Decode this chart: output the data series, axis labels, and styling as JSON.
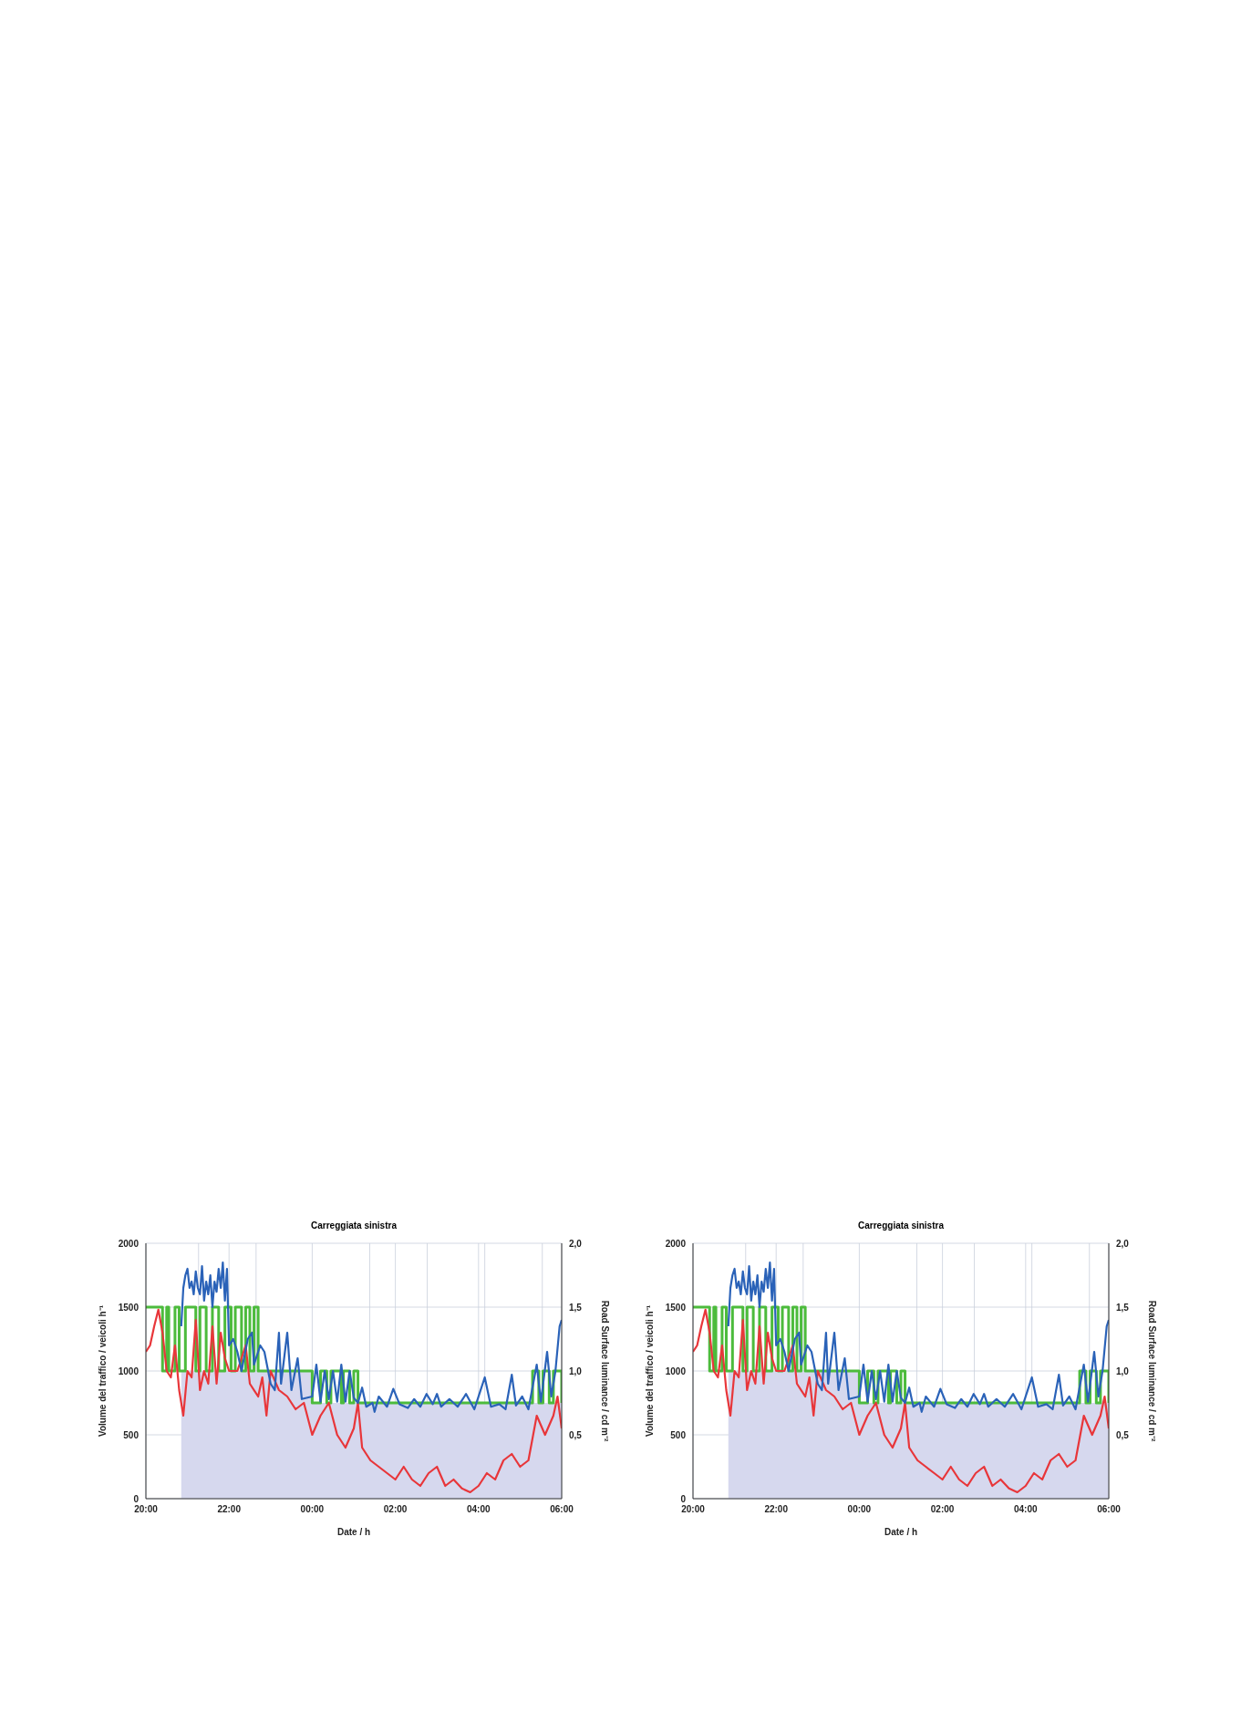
{
  "chart_data": [
    {
      "type": "line",
      "title": "Carreggiata sinistra",
      "xlabel": "Date / h",
      "ylabel": "Volume del traffico / veicoli h⁻¹",
      "y2label": "Road Surface luminance / cd m⁻²",
      "xlim": [
        "2000-01-01T20:00",
        "2000-01-02T06:00"
      ],
      "xticks": [
        {
          "value": "2000-01-01T20:00",
          "label": "20:00"
        },
        {
          "value": "2000-01-01T21:16",
          "label": null
        },
        {
          "value": "2000-01-01T22:00",
          "label": "22:00"
        },
        {
          "value": "2000-01-01T22:39",
          "label": null
        },
        {
          "value": "2000-01-02T00:00",
          "label": "00:00"
        },
        {
          "value": "2000-01-02T01:23",
          "label": null
        },
        {
          "value": "2000-01-02T02:00",
          "label": "02:00"
        },
        {
          "value": "2000-01-02T02:46",
          "label": null
        },
        {
          "value": "2000-01-02T04:00",
          "label": "04:00"
        },
        {
          "value": "2000-01-02T04:09",
          "label": null
        },
        {
          "value": "2000-01-02T05:32",
          "label": null
        },
        {
          "value": "2000-01-02T06:00",
          "label": "06:00"
        }
      ],
      "ylim": [
        0,
        2000
      ],
      "yticks": [
        0,
        500,
        1000,
        1500,
        2000
      ],
      "y2lim": [
        0,
        2
      ],
      "y2ticks": [
        {
          "value": 0.5,
          "label": "0,5"
        },
        {
          "value": 1,
          "label": "1,0"
        },
        {
          "value": 1.5,
          "label": "1,5"
        },
        {
          "value": 2,
          "label": "2,0"
        }
      ],
      "grid": true,
      "series": [
        {
          "type": "area",
          "axis": "y2",
          "color": "#d6d8ee",
          "x": [
            "2000-01-01T20:51",
            "2000-01-01T23:59",
            "2000-01-02T00:00",
            "2000-01-02T06:00"
          ],
          "values": [
            1.0,
            1.0,
            0.75,
            0.75
          ]
        },
        {
          "type": "line",
          "color": "#e8363a",
          "x": [
            "2000-01-01T20:00",
            "2000-01-01T20:06",
            "2000-01-01T20:12",
            "2000-01-01T20:18",
            "2000-01-01T20:24",
            "2000-01-01T20:30",
            "2000-01-01T20:36",
            "2000-01-01T20:42",
            "2000-01-01T20:48",
            "2000-01-01T20:54",
            "2000-01-01T21:00",
            "2000-01-01T21:06",
            "2000-01-01T21:12",
            "2000-01-01T21:18",
            "2000-01-01T21:24",
            "2000-01-01T21:30",
            "2000-01-01T21:36",
            "2000-01-01T21:42",
            "2000-01-01T21:48",
            "2000-01-01T21:54",
            "2000-01-01T22:00",
            "2000-01-01T22:12",
            "2000-01-01T22:24",
            "2000-01-01T22:30",
            "2000-01-01T22:42",
            "2000-01-01T22:48",
            "2000-01-01T22:54",
            "2000-01-01T23:00",
            "2000-01-01T23:12",
            "2000-01-01T23:24",
            "2000-01-01T23:36",
            "2000-01-01T23:48",
            "2000-01-02T00:00",
            "2000-01-02T00:12",
            "2000-01-02T00:24",
            "2000-01-02T00:36",
            "2000-01-02T00:48",
            "2000-01-02T01:00",
            "2000-01-02T01:06",
            "2000-01-02T01:12",
            "2000-01-02T01:24",
            "2000-01-02T01:36",
            "2000-01-02T01:48",
            "2000-01-02T02:00",
            "2000-01-02T02:12",
            "2000-01-02T02:24",
            "2000-01-02T02:36",
            "2000-01-02T02:48",
            "2000-01-02T03:00",
            "2000-01-02T03:12",
            "2000-01-02T03:24",
            "2000-01-02T03:36",
            "2000-01-02T03:48",
            "2000-01-02T04:00",
            "2000-01-02T04:12",
            "2000-01-02T04:24",
            "2000-01-02T04:36",
            "2000-01-02T04:48",
            "2000-01-02T05:00",
            "2000-01-02T05:12",
            "2000-01-02T05:24",
            "2000-01-02T05:36",
            "2000-01-02T05:48",
            "2000-01-02T05:54",
            "2000-01-02T06:00"
          ],
          "values": [
            1150,
            1200,
            1350,
            1480,
            1300,
            1000,
            950,
            1200,
            850,
            650,
            1000,
            950,
            1400,
            850,
            1000,
            900,
            1350,
            900,
            1300,
            1100,
            1000,
            1000,
            1200,
            900,
            800,
            950,
            650,
            1000,
            850,
            800,
            700,
            750,
            500,
            650,
            750,
            500,
            400,
            550,
            750,
            400,
            300,
            250,
            200,
            150,
            250,
            150,
            100,
            200,
            250,
            100,
            150,
            80,
            50,
            100,
            200,
            150,
            300,
            350,
            250,
            300,
            650,
            500,
            650,
            800,
            550
          ]
        },
        {
          "type": "line",
          "color": "#2a62b8",
          "x": [
            "2000-01-01T20:51",
            "2000-01-01T20:54",
            "2000-01-01T20:57",
            "2000-01-01T21:00",
            "2000-01-01T21:03",
            "2000-01-01T21:06",
            "2000-01-01T21:09",
            "2000-01-01T21:12",
            "2000-01-01T21:15",
            "2000-01-01T21:18",
            "2000-01-01T21:21",
            "2000-01-01T21:24",
            "2000-01-01T21:27",
            "2000-01-01T21:30",
            "2000-01-01T21:33",
            "2000-01-01T21:36",
            "2000-01-01T21:39",
            "2000-01-01T21:42",
            "2000-01-01T21:45",
            "2000-01-01T21:48",
            "2000-01-01T21:51",
            "2000-01-01T21:54",
            "2000-01-01T21:57",
            "2000-01-01T22:00",
            "2000-01-01T22:06",
            "2000-01-01T22:12",
            "2000-01-01T22:18",
            "2000-01-01T22:27",
            "2000-01-01T22:33",
            "2000-01-01T22:36",
            "2000-01-01T22:45",
            "2000-01-01T22:51",
            "2000-01-01T23:00",
            "2000-01-01T23:06",
            "2000-01-01T23:12",
            "2000-01-01T23:15",
            "2000-01-01T23:24",
            "2000-01-01T23:30",
            "2000-01-01T23:39",
            "2000-01-01T23:45",
            "2000-01-02T00:00",
            "2000-01-02T00:06",
            "2000-01-02T00:12",
            "2000-01-02T00:18",
            "2000-01-02T00:24",
            "2000-01-02T00:30",
            "2000-01-02T00:36",
            "2000-01-02T00:42",
            "2000-01-02T00:48",
            "2000-01-02T00:54",
            "2000-01-02T01:00",
            "2000-01-02T01:06",
            "2000-01-02T01:12",
            "2000-01-02T01:18",
            "2000-01-02T01:27",
            "2000-01-02T01:30",
            "2000-01-02T01:36",
            "2000-01-02T01:48",
            "2000-01-02T01:57",
            "2000-01-02T02:06",
            "2000-01-02T02:18",
            "2000-01-02T02:27",
            "2000-01-02T02:36",
            "2000-01-02T02:45",
            "2000-01-02T02:54",
            "2000-01-02T03:00",
            "2000-01-02T03:06",
            "2000-01-02T03:18",
            "2000-01-02T03:30",
            "2000-01-02T03:42",
            "2000-01-02T03:54",
            "2000-01-02T04:09",
            "2000-01-02T04:18",
            "2000-01-02T04:30",
            "2000-01-02T04:39",
            "2000-01-02T04:48",
            "2000-01-02T04:54",
            "2000-01-02T05:03",
            "2000-01-02T05:12",
            "2000-01-02T05:24",
            "2000-01-02T05:30",
            "2000-01-02T05:39",
            "2000-01-02T05:45",
            "2000-01-02T05:51",
            "2000-01-02T05:57",
            "2000-01-02T06:00"
          ],
          "values": [
            1350,
            1650,
            1750,
            1800,
            1650,
            1700,
            1600,
            1780,
            1650,
            1600,
            1820,
            1550,
            1700,
            1600,
            1750,
            1500,
            1700,
            1620,
            1800,
            1650,
            1850,
            1550,
            1800,
            1200,
            1250,
            1150,
            1000,
            1250,
            1300,
            1050,
            1200,
            1150,
            900,
            850,
            1300,
            900,
            1300,
            850,
            1100,
            780,
            800,
            1050,
            760,
            1000,
            780,
            1000,
            760,
            1050,
            760,
            1000,
            790,
            750,
            870,
            720,
            750,
            680,
            800,
            720,
            860,
            740,
            710,
            780,
            720,
            820,
            740,
            820,
            720,
            780,
            720,
            820,
            700,
            950,
            720,
            740,
            700,
            970,
            730,
            800,
            700,
            1050,
            760,
            1150,
            800,
            1000,
            1350,
            1400
          ]
        },
        {
          "type": "step",
          "axis": "y2",
          "color": "#4cbb3c",
          "x": [
            "2000-01-01T20:00",
            "2000-01-01T20:24",
            "2000-01-01T20:30",
            "2000-01-01T20:33",
            "2000-01-01T20:42",
            "2000-01-01T20:48",
            "2000-01-01T20:57",
            "2000-01-01T21:12",
            "2000-01-01T21:18",
            "2000-01-01T21:27",
            "2000-01-01T21:36",
            "2000-01-01T21:45",
            "2000-01-01T21:54",
            "2000-01-01T22:03",
            "2000-01-01T22:09",
            "2000-01-01T22:18",
            "2000-01-01T22:24",
            "2000-01-01T22:30",
            "2000-01-01T22:36",
            "2000-01-01T22:42",
            "2000-01-02T00:00",
            "2000-01-02T00:12",
            "2000-01-02T00:21",
            "2000-01-02T00:27",
            "2000-01-02T00:42",
            "2000-01-02T00:45",
            "2000-01-02T00:54",
            "2000-01-02T01:00",
            "2000-01-02T01:06",
            "2000-01-02T05:18",
            "2000-01-02T05:27",
            "2000-01-02T05:33",
            "2000-01-02T05:42",
            "2000-01-02T05:48",
            "2000-01-02T06:00"
          ],
          "values": [
            1.5,
            1.0,
            1.5,
            1.0,
            1.5,
            1.0,
            1.5,
            1.0,
            1.5,
            1.0,
            1.5,
            1.0,
            1.5,
            1.0,
            1.5,
            1.0,
            1.5,
            1.0,
            1.5,
            1.0,
            0.75,
            1.0,
            0.75,
            1.0,
            0.75,
            1.0,
            0.75,
            1.0,
            0.75,
            1.0,
            0.75,
            1.0,
            0.75,
            1.0,
            0.75
          ]
        }
      ]
    },
    {
      "type": "line",
      "title": "Carreggiata sinistra",
      "xlabel": "Date / h",
      "ylabel": "Volume del traffico / veicoli h⁻¹",
      "y2label": "Road Surface luminance / cd m⁻²",
      "xlim": [
        "2000-01-01T20:00",
        "2000-01-02T06:00"
      ],
      "xticks": [
        {
          "value": "2000-01-01T20:00",
          "label": "20:00"
        },
        {
          "value": "2000-01-01T21:16",
          "label": null
        },
        {
          "value": "2000-01-01T22:00",
          "label": "22:00"
        },
        {
          "value": "2000-01-01T22:39",
          "label": null
        },
        {
          "value": "2000-01-02T00:00",
          "label": "00:00"
        },
        {
          "value": "2000-01-02T01:23",
          "label": null
        },
        {
          "value": "2000-01-02T02:00",
          "label": "02:00"
        },
        {
          "value": "2000-01-02T02:46",
          "label": null
        },
        {
          "value": "2000-01-02T04:00",
          "label": "04:00"
        },
        {
          "value": "2000-01-02T04:09",
          "label": null
        },
        {
          "value": "2000-01-02T05:32",
          "label": null
        },
        {
          "value": "2000-01-02T06:00",
          "label": "06:00"
        }
      ],
      "ylim": [
        0,
        2000
      ],
      "yticks": [
        0,
        500,
        1000,
        1500,
        2000
      ],
      "y2lim": [
        0,
        2
      ],
      "y2ticks": [
        {
          "value": 0.5,
          "label": "0,5"
        },
        {
          "value": 1,
          "label": "1,0"
        },
        {
          "value": 1.5,
          "label": "1,5"
        },
        {
          "value": 2,
          "label": "2,0"
        }
      ],
      "grid": true,
      "series": [
        {
          "type": "area",
          "axis": "y2",
          "color": "#d6d8ee",
          "x": [
            "2000-01-01T20:51",
            "2000-01-01T23:59",
            "2000-01-02T00:00",
            "2000-01-02T06:00"
          ],
          "values": [
            1.0,
            1.0,
            0.75,
            0.75
          ]
        },
        {
          "type": "line",
          "color": "#e8363a",
          "x": [
            "2000-01-01T20:00",
            "2000-01-01T20:06",
            "2000-01-01T20:12",
            "2000-01-01T20:18",
            "2000-01-01T20:24",
            "2000-01-01T20:30",
            "2000-01-01T20:36",
            "2000-01-01T20:42",
            "2000-01-01T20:48",
            "2000-01-01T20:54",
            "2000-01-01T21:00",
            "2000-01-01T21:06",
            "2000-01-01T21:12",
            "2000-01-01T21:18",
            "2000-01-01T21:24",
            "2000-01-01T21:30",
            "2000-01-01T21:36",
            "2000-01-01T21:42",
            "2000-01-01T21:48",
            "2000-01-01T21:54",
            "2000-01-01T22:00",
            "2000-01-01T22:12",
            "2000-01-01T22:24",
            "2000-01-01T22:30",
            "2000-01-01T22:42",
            "2000-01-01T22:48",
            "2000-01-01T22:54",
            "2000-01-01T23:00",
            "2000-01-01T23:12",
            "2000-01-01T23:24",
            "2000-01-01T23:36",
            "2000-01-01T23:48",
            "2000-01-02T00:00",
            "2000-01-02T00:12",
            "2000-01-02T00:24",
            "2000-01-02T00:36",
            "2000-01-02T00:48",
            "2000-01-02T01:00",
            "2000-01-02T01:06",
            "2000-01-02T01:12",
            "2000-01-02T01:24",
            "2000-01-02T01:36",
            "2000-01-02T01:48",
            "2000-01-02T02:00",
            "2000-01-02T02:12",
            "2000-01-02T02:24",
            "2000-01-02T02:36",
            "2000-01-02T02:48",
            "2000-01-02T03:00",
            "2000-01-02T03:12",
            "2000-01-02T03:24",
            "2000-01-02T03:36",
            "2000-01-02T03:48",
            "2000-01-02T04:00",
            "2000-01-02T04:12",
            "2000-01-02T04:24",
            "2000-01-02T04:36",
            "2000-01-02T04:48",
            "2000-01-02T05:00",
            "2000-01-02T05:12",
            "2000-01-02T05:24",
            "2000-01-02T05:36",
            "2000-01-02T05:48",
            "2000-01-02T05:54",
            "2000-01-02T06:00"
          ],
          "values": [
            1150,
            1200,
            1350,
            1480,
            1300,
            1000,
            950,
            1200,
            850,
            650,
            1000,
            950,
            1400,
            850,
            1000,
            900,
            1350,
            900,
            1300,
            1100,
            1000,
            1000,
            1200,
            900,
            800,
            950,
            650,
            1000,
            850,
            800,
            700,
            750,
            500,
            650,
            750,
            500,
            400,
            550,
            750,
            400,
            300,
            250,
            200,
            150,
            250,
            150,
            100,
            200,
            250,
            100,
            150,
            80,
            50,
            100,
            200,
            150,
            300,
            350,
            250,
            300,
            650,
            500,
            650,
            800,
            550
          ]
        },
        {
          "type": "line",
          "color": "#2a62b8",
          "x": [
            "2000-01-01T20:51",
            "2000-01-01T20:54",
            "2000-01-01T20:57",
            "2000-01-01T21:00",
            "2000-01-01T21:03",
            "2000-01-01T21:06",
            "2000-01-01T21:09",
            "2000-01-01T21:12",
            "2000-01-01T21:15",
            "2000-01-01T21:18",
            "2000-01-01T21:21",
            "2000-01-01T21:24",
            "2000-01-01T21:27",
            "2000-01-01T21:30",
            "2000-01-01T21:33",
            "2000-01-01T21:36",
            "2000-01-01T21:39",
            "2000-01-01T21:42",
            "2000-01-01T21:45",
            "2000-01-01T21:48",
            "2000-01-01T21:51",
            "2000-01-01T21:54",
            "2000-01-01T21:57",
            "2000-01-01T22:00",
            "2000-01-01T22:06",
            "2000-01-01T22:12",
            "2000-01-01T22:18",
            "2000-01-01T22:27",
            "2000-01-01T22:33",
            "2000-01-01T22:36",
            "2000-01-01T22:45",
            "2000-01-01T22:51",
            "2000-01-01T23:00",
            "2000-01-01T23:06",
            "2000-01-01T23:12",
            "2000-01-01T23:15",
            "2000-01-01T23:24",
            "2000-01-01T23:30",
            "2000-01-01T23:39",
            "2000-01-01T23:45",
            "2000-01-02T00:00",
            "2000-01-02T00:06",
            "2000-01-02T00:12",
            "2000-01-02T00:18",
            "2000-01-02T00:24",
            "2000-01-02T00:30",
            "2000-01-02T00:36",
            "2000-01-02T00:42",
            "2000-01-02T00:48",
            "2000-01-02T00:54",
            "2000-01-02T01:00",
            "2000-01-02T01:06",
            "2000-01-02T01:12",
            "2000-01-02T01:18",
            "2000-01-02T01:27",
            "2000-01-02T01:30",
            "2000-01-02T01:36",
            "2000-01-02T01:48",
            "2000-01-02T01:57",
            "2000-01-02T02:06",
            "2000-01-02T02:18",
            "2000-01-02T02:27",
            "2000-01-02T02:36",
            "2000-01-02T02:45",
            "2000-01-02T02:54",
            "2000-01-02T03:00",
            "2000-01-02T03:06",
            "2000-01-02T03:18",
            "2000-01-02T03:30",
            "2000-01-02T03:42",
            "2000-01-02T03:54",
            "2000-01-02T04:09",
            "2000-01-02T04:18",
            "2000-01-02T04:30",
            "2000-01-02T04:39",
            "2000-01-02T04:48",
            "2000-01-02T04:54",
            "2000-01-02T05:03",
            "2000-01-02T05:12",
            "2000-01-02T05:24",
            "2000-01-02T05:30",
            "2000-01-02T05:39",
            "2000-01-02T05:45",
            "2000-01-02T05:51",
            "2000-01-02T05:57",
            "2000-01-02T06:00"
          ],
          "values": [
            1350,
            1650,
            1750,
            1800,
            1650,
            1700,
            1600,
            1780,
            1650,
            1600,
            1820,
            1550,
            1700,
            1600,
            1750,
            1500,
            1700,
            1620,
            1800,
            1650,
            1850,
            1550,
            1800,
            1200,
            1250,
            1150,
            1000,
            1250,
            1300,
            1050,
            1200,
            1150,
            900,
            850,
            1300,
            900,
            1300,
            850,
            1100,
            780,
            800,
            1050,
            760,
            1000,
            780,
            1000,
            760,
            1050,
            760,
            1000,
            790,
            750,
            870,
            720,
            750,
            680,
            800,
            720,
            860,
            740,
            710,
            780,
            720,
            820,
            740,
            820,
            720,
            780,
            720,
            820,
            700,
            950,
            720,
            740,
            700,
            970,
            730,
            800,
            700,
            1050,
            760,
            1150,
            800,
            1000,
            1350,
            1400
          ]
        },
        {
          "type": "step",
          "axis": "y2",
          "color": "#4cbb3c",
          "x": [
            "2000-01-01T20:00",
            "2000-01-01T20:24",
            "2000-01-01T20:30",
            "2000-01-01T20:33",
            "2000-01-01T20:42",
            "2000-01-01T20:48",
            "2000-01-01T20:57",
            "2000-01-01T21:12",
            "2000-01-01T21:18",
            "2000-01-01T21:27",
            "2000-01-01T21:36",
            "2000-01-01T21:45",
            "2000-01-01T21:54",
            "2000-01-01T22:03",
            "2000-01-01T22:09",
            "2000-01-01T22:18",
            "2000-01-01T22:24",
            "2000-01-01T22:30",
            "2000-01-01T22:36",
            "2000-01-01T22:42",
            "2000-01-02T00:00",
            "2000-01-02T00:12",
            "2000-01-02T00:21",
            "2000-01-02T00:27",
            "2000-01-02T00:42",
            "2000-01-02T00:45",
            "2000-01-02T00:54",
            "2000-01-02T01:00",
            "2000-01-02T01:06",
            "2000-01-02T05:18",
            "2000-01-02T05:27",
            "2000-01-02T05:33",
            "2000-01-02T05:42",
            "2000-01-02T05:48",
            "2000-01-02T06:00"
          ],
          "values": [
            1.5,
            1.0,
            1.5,
            1.0,
            1.5,
            1.0,
            1.5,
            1.0,
            1.5,
            1.0,
            1.5,
            1.0,
            1.5,
            1.0,
            1.5,
            1.0,
            1.5,
            1.0,
            1.5,
            1.0,
            0.75,
            1.0,
            0.75,
            1.0,
            0.75,
            1.0,
            0.75,
            1.0,
            0.75,
            1.0,
            0.75,
            1.0,
            0.75,
            1.0,
            0.75
          ]
        }
      ]
    }
  ]
}
